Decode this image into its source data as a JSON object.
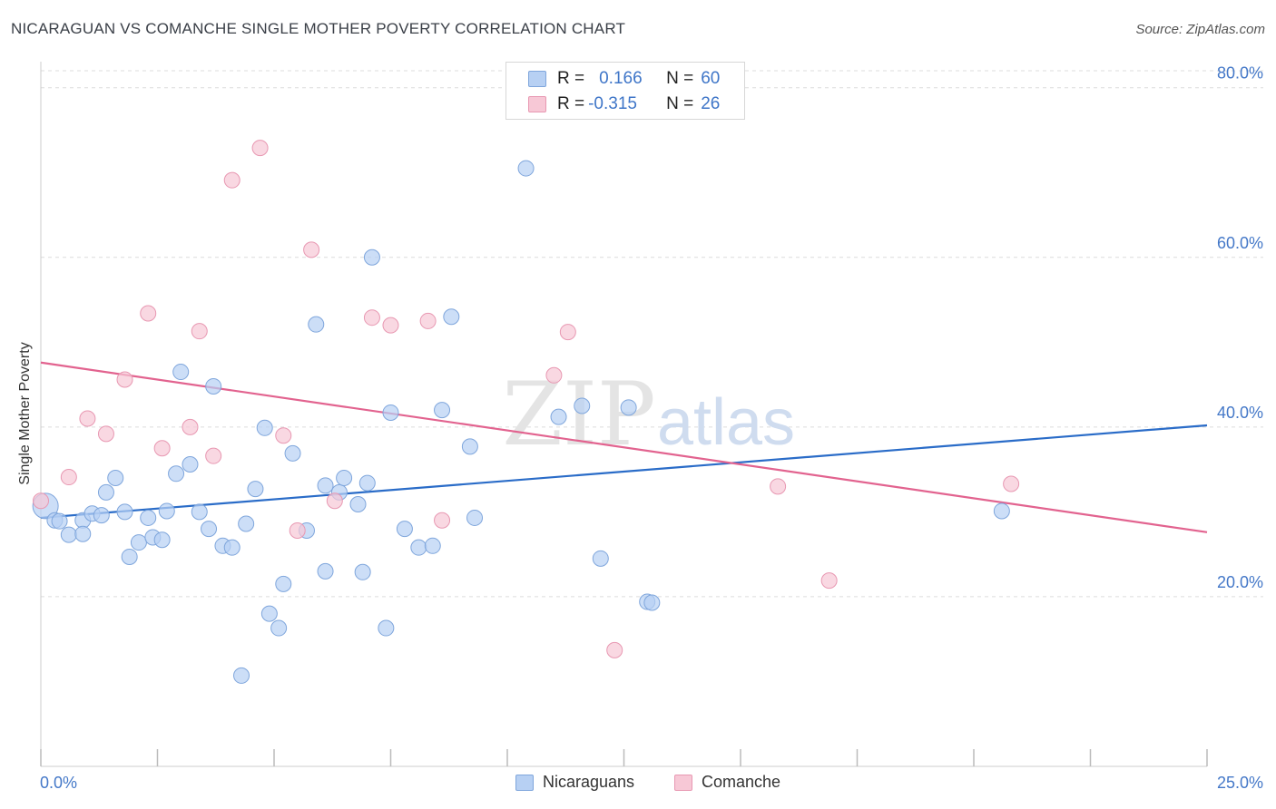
{
  "title": "NICARAGUAN VS COMANCHE SINGLE MOTHER POVERTY CORRELATION CHART",
  "source": "Source: ZipAtlas.com",
  "watermark": {
    "zip": "ZIP",
    "atlas": "atlas"
  },
  "legend": {
    "rows": [
      {
        "r_label": "R =",
        "r_value": "0.166",
        "n_label": "N =",
        "n_value": "60"
      },
      {
        "r_label": "R =",
        "r_value": "-0.315",
        "n_label": "N =",
        "n_value": "26"
      }
    ]
  },
  "bottom_legend": {
    "series1": "Nicaraguans",
    "series2": "Comanche"
  },
  "colors": {
    "blue_fill": "#b7d0f3",
    "blue_stroke": "#7fa6dc",
    "blue_line": "#2a6cc8",
    "pink_fill": "#f7c8d6",
    "pink_stroke": "#e898b2",
    "pink_line": "#e2638f",
    "axis_text": "#4478c8",
    "grid": "#dcdcdc"
  },
  "chart_data": {
    "type": "scatter",
    "title": "NICARAGUAN VS COMANCHE SINGLE MOTHER POVERTY CORRELATION CHART",
    "xlabel": "",
    "ylabel": "Single Mother Poverty",
    "xlim": [
      0,
      25
    ],
    "ylim": [
      0,
      82
    ],
    "x_tick_labels": [
      "0.0%",
      "25.0%"
    ],
    "y_ticks": [
      20,
      40,
      60,
      80
    ],
    "y_tick_labels": [
      "20.0%",
      "40.0%",
      "60.0%",
      "80.0%"
    ],
    "grid": true,
    "series": [
      {
        "name": "Nicaraguans",
        "trend": {
          "x": [
            0,
            25
          ],
          "y": [
            29.3,
            40.2
          ]
        },
        "points": [
          [
            0.1,
            30.7
          ],
          [
            0.3,
            29.0
          ],
          [
            0.4,
            28.9
          ],
          [
            0.6,
            27.3
          ],
          [
            0.9,
            29.0
          ],
          [
            0.9,
            27.4
          ],
          [
            1.1,
            29.8
          ],
          [
            1.3,
            29.6
          ],
          [
            1.4,
            32.3
          ],
          [
            1.6,
            34.0
          ],
          [
            1.8,
            30.0
          ],
          [
            1.9,
            24.7
          ],
          [
            2.1,
            26.4
          ],
          [
            2.3,
            29.3
          ],
          [
            2.4,
            27.0
          ],
          [
            2.6,
            26.7
          ],
          [
            2.7,
            30.1
          ],
          [
            2.9,
            34.5
          ],
          [
            3.0,
            46.5
          ],
          [
            3.2,
            35.6
          ],
          [
            3.4,
            30.0
          ],
          [
            3.6,
            28.0
          ],
          [
            3.7,
            44.8
          ],
          [
            3.9,
            26.0
          ],
          [
            4.1,
            25.8
          ],
          [
            4.3,
            10.7
          ],
          [
            4.4,
            28.6
          ],
          [
            4.6,
            32.7
          ],
          [
            4.8,
            39.9
          ],
          [
            4.9,
            18.0
          ],
          [
            5.1,
            16.3
          ],
          [
            5.2,
            21.5
          ],
          [
            5.4,
            36.9
          ],
          [
            5.7,
            27.8
          ],
          [
            5.9,
            52.1
          ],
          [
            6.1,
            33.1
          ],
          [
            6.1,
            23.0
          ],
          [
            6.4,
            32.3
          ],
          [
            6.5,
            34.0
          ],
          [
            6.8,
            30.9
          ],
          [
            6.9,
            22.9
          ],
          [
            7.0,
            33.4
          ],
          [
            7.1,
            60.0
          ],
          [
            7.4,
            16.3
          ],
          [
            7.5,
            41.7
          ],
          [
            7.8,
            28.0
          ],
          [
            8.1,
            25.8
          ],
          [
            8.4,
            26.0
          ],
          [
            8.6,
            42.0
          ],
          [
            8.8,
            53.0
          ],
          [
            9.2,
            37.7
          ],
          [
            9.3,
            29.3
          ],
          [
            10.4,
            70.5
          ],
          [
            11.1,
            41.2
          ],
          [
            11.6,
            42.5
          ],
          [
            12.0,
            24.5
          ],
          [
            12.6,
            42.3
          ],
          [
            13.0,
            19.4
          ],
          [
            13.1,
            19.3
          ],
          [
            20.6,
            30.1
          ]
        ]
      },
      {
        "name": "Comanche",
        "trend": {
          "x": [
            0,
            25
          ],
          "y": [
            47.6,
            27.6
          ]
        },
        "points": [
          [
            0.0,
            31.3
          ],
          [
            0.6,
            34.1
          ],
          [
            1.0,
            41.0
          ],
          [
            1.4,
            39.2
          ],
          [
            1.8,
            45.6
          ],
          [
            2.3,
            53.4
          ],
          [
            2.6,
            37.5
          ],
          [
            3.2,
            40.0
          ],
          [
            3.4,
            51.3
          ],
          [
            3.7,
            36.6
          ],
          [
            4.1,
            69.1
          ],
          [
            4.7,
            72.9
          ],
          [
            5.2,
            39.0
          ],
          [
            5.5,
            27.8
          ],
          [
            5.8,
            60.9
          ],
          [
            6.3,
            31.3
          ],
          [
            7.1,
            52.9
          ],
          [
            7.5,
            52.0
          ],
          [
            8.3,
            52.5
          ],
          [
            8.6,
            29.0
          ],
          [
            11.0,
            46.1
          ],
          [
            11.3,
            51.2
          ],
          [
            12.3,
            13.7
          ],
          [
            15.8,
            33.0
          ],
          [
            16.9,
            21.9
          ],
          [
            20.8,
            33.3
          ]
        ]
      }
    ]
  }
}
